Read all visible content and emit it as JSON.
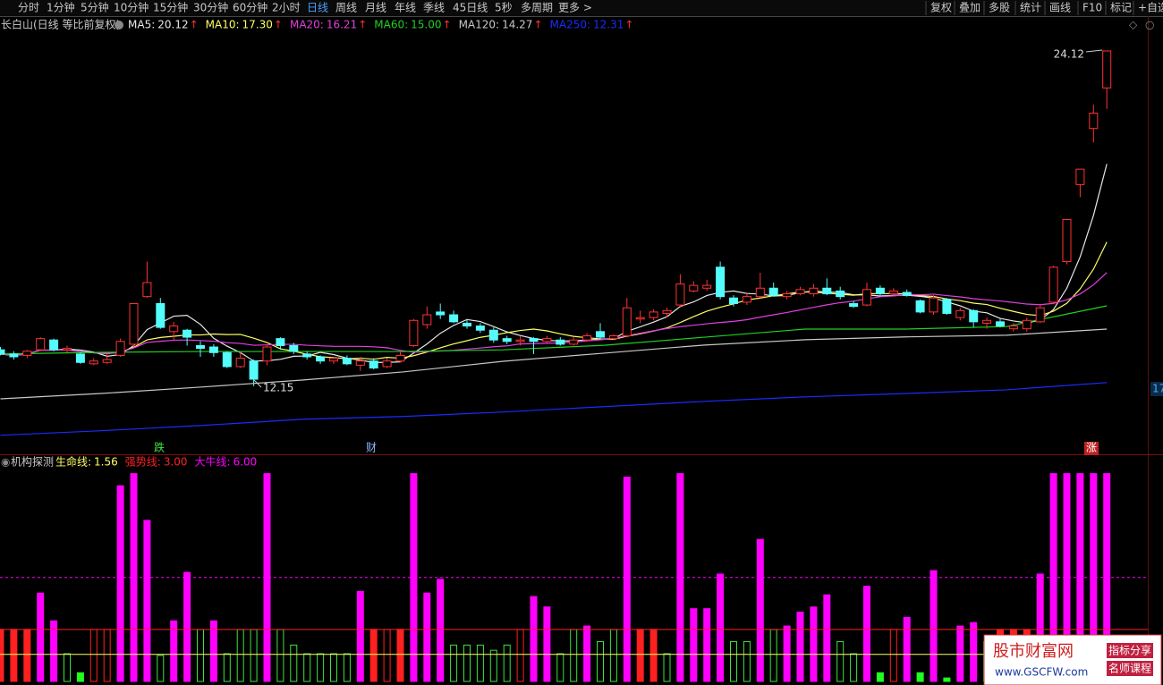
{
  "toolbar": {
    "left": [
      "分时",
      "1分钟",
      "5分钟",
      "10分钟",
      "15分钟",
      "30分钟",
      "60分钟",
      "2小时",
      "日线",
      "周线",
      "月线",
      "年线",
      "季线",
      "45日线",
      "5秒",
      "多周期",
      "更多 >"
    ],
    "active": "日线",
    "right": [
      "复权",
      "叠加",
      "多股",
      "统计",
      "画线",
      "F10",
      "标记",
      "+自选"
    ]
  },
  "main": {
    "title": "长白山(日线 等比前复权)",
    "ylim": [
      9.72,
      25.3
    ],
    "ma": [
      {
        "name": "MA5:",
        "value": 20.12,
        "trend": "↑",
        "color": "#e8e8e8"
      },
      {
        "name": "MA10:",
        "value": 17.3,
        "value_label": "17.30",
        "trend": "↑",
        "color": "#ffff64"
      },
      {
        "name": "MA20:",
        "value": 16.21,
        "trend": "↑",
        "color": "#e040e0"
      },
      {
        "name": "MA60:",
        "value": 15.0,
        "value_label": "15.00",
        "trend": "↑",
        "color": "#20d020",
        "values": [
          13.3,
          13.36,
          13.39,
          13.39,
          13.39,
          13.45,
          13.61,
          13.9,
          14.19,
          14.19,
          14.28,
          15.02
        ]
      },
      {
        "name": "MA120:",
        "value": 14.27,
        "trend": "↑",
        "color": "#c8c8c8",
        "values": [
          11.7,
          11.89,
          12.12,
          12.37,
          12.66,
          13.04,
          13.33,
          13.62,
          13.81,
          13.91,
          13.97,
          14.19
        ]
      },
      {
        "name": "MA250:",
        "value": 12.31,
        "trend": "↑",
        "color": "#1a2cff",
        "values": [
          10.4,
          10.56,
          10.75,
          10.97,
          11.07,
          11.23,
          11.42,
          11.61,
          11.77,
          11.89,
          12.02,
          12.28
        ]
      }
    ],
    "candles": [
      [
        13.45,
        13.55,
        13.25,
        13.3
      ],
      [
        13.3,
        13.4,
        13.1,
        13.2
      ],
      [
        13.25,
        13.45,
        13.15,
        13.4
      ],
      [
        13.45,
        13.9,
        13.4,
        13.85
      ],
      [
        13.8,
        13.85,
        13.4,
        13.45
      ],
      [
        13.45,
        13.6,
        13.35,
        13.5
      ],
      [
        13.3,
        13.35,
        12.95,
        13.0
      ],
      [
        12.95,
        13.15,
        12.9,
        13.05
      ],
      [
        13.0,
        13.3,
        12.95,
        13.1
      ],
      [
        13.25,
        13.85,
        13.2,
        13.75
      ],
      [
        13.65,
        15.1,
        13.55,
        15.1
      ],
      [
        15.35,
        16.6,
        15.3,
        15.85
      ],
      [
        15.1,
        15.3,
        14.2,
        14.25
      ],
      [
        14.1,
        14.45,
        13.8,
        14.3
      ],
      [
        14.15,
        14.2,
        13.6,
        13.9
      ],
      [
        13.6,
        13.75,
        13.2,
        13.5
      ],
      [
        13.55,
        13.65,
        13.2,
        13.35
      ],
      [
        13.35,
        13.4,
        12.8,
        12.85
      ],
      [
        12.85,
        13.4,
        12.8,
        13.15
      ],
      [
        13.05,
        13.1,
        12.15,
        12.4
      ],
      [
        13.05,
        13.65,
        12.9,
        13.55
      ],
      [
        13.85,
        13.9,
        13.45,
        13.6
      ],
      [
        13.6,
        13.7,
        13.3,
        13.4
      ],
      [
        13.3,
        13.4,
        13.1,
        13.2
      ],
      [
        13.2,
        13.25,
        12.95,
        13.05
      ],
      [
        13.05,
        13.2,
        12.95,
        13.15
      ],
      [
        13.15,
        13.25,
        12.9,
        12.95
      ],
      [
        12.9,
        13.2,
        12.7,
        13.05
      ],
      [
        13.05,
        13.15,
        12.75,
        12.8
      ],
      [
        12.85,
        13.15,
        12.8,
        13.05
      ],
      [
        13.05,
        13.4,
        13.0,
        13.25
      ],
      [
        13.6,
        14.55,
        13.55,
        14.5
      ],
      [
        14.35,
        15.0,
        14.2,
        14.7
      ],
      [
        14.8,
        15.1,
        14.55,
        14.7
      ],
      [
        14.7,
        14.85,
        14.4,
        14.45
      ],
      [
        14.4,
        14.55,
        14.2,
        14.3
      ],
      [
        14.3,
        14.4,
        14.05,
        14.15
      ],
      [
        14.15,
        14.25,
        13.7,
        13.8
      ],
      [
        13.85,
        13.95,
        13.65,
        13.75
      ],
      [
        13.75,
        13.95,
        13.6,
        13.8
      ],
      [
        13.85,
        13.9,
        13.3,
        13.75
      ],
      [
        13.75,
        13.95,
        13.7,
        13.85
      ],
      [
        13.8,
        13.9,
        13.6,
        13.65
      ],
      [
        13.65,
        13.9,
        13.6,
        13.8
      ],
      [
        13.8,
        14.05,
        13.75,
        13.95
      ],
      [
        14.1,
        14.4,
        13.85,
        13.9
      ],
      [
        13.85,
        14.0,
        13.8,
        13.95
      ],
      [
        13.95,
        15.3,
        13.9,
        14.95
      ],
      [
        14.55,
        14.85,
        14.4,
        14.6
      ],
      [
        14.6,
        14.9,
        14.5,
        14.8
      ],
      [
        14.75,
        14.95,
        14.6,
        14.85
      ],
      [
        15.05,
        16.15,
        14.95,
        15.8
      ],
      [
        15.55,
        15.9,
        15.5,
        15.75
      ],
      [
        15.65,
        15.95,
        15.55,
        15.75
      ],
      [
        16.4,
        16.6,
        15.25,
        15.35
      ],
      [
        15.3,
        15.4,
        15.0,
        15.1
      ],
      [
        15.15,
        15.5,
        15.05,
        15.35
      ],
      [
        15.35,
        16.2,
        15.3,
        15.65
      ],
      [
        15.65,
        15.85,
        15.35,
        15.4
      ],
      [
        15.35,
        15.55,
        15.25,
        15.45
      ],
      [
        15.45,
        15.7,
        15.4,
        15.6
      ],
      [
        15.45,
        15.8,
        15.35,
        15.65
      ],
      [
        15.65,
        16.0,
        15.4,
        15.45
      ],
      [
        15.55,
        15.7,
        15.25,
        15.35
      ],
      [
        15.1,
        15.2,
        14.95,
        15.0
      ],
      [
        15.05,
        15.85,
        15.0,
        15.6
      ],
      [
        15.65,
        15.75,
        15.4,
        15.45
      ],
      [
        15.45,
        15.65,
        15.4,
        15.55
      ],
      [
        15.5,
        15.6,
        15.35,
        15.4
      ],
      [
        15.2,
        15.25,
        14.75,
        14.8
      ],
      [
        14.8,
        15.4,
        14.7,
        15.3
      ],
      [
        15.25,
        15.3,
        14.7,
        14.75
      ],
      [
        14.6,
        14.95,
        14.5,
        14.85
      ],
      [
        14.85,
        14.9,
        14.25,
        14.45
      ],
      [
        14.4,
        14.6,
        14.2,
        14.5
      ],
      [
        14.45,
        14.55,
        14.25,
        14.3
      ],
      [
        14.2,
        14.4,
        14.1,
        14.3
      ],
      [
        14.2,
        14.6,
        14.1,
        14.5
      ],
      [
        14.45,
        15.05,
        14.4,
        14.95
      ],
      [
        15.15,
        16.45,
        15.1,
        16.4
      ],
      [
        16.6,
        18.1,
        16.5,
        18.1
      ],
      [
        19.35,
        19.9,
        18.9,
        19.9
      ],
      [
        21.35,
        22.2,
        20.85,
        21.9
      ],
      [
        22.8,
        24.12,
        22.05,
        24.12
      ]
    ],
    "high_label": 24.12,
    "low_label": 12.15,
    "right_axis_label": "17",
    "events": [
      {
        "text": "跌",
        "color": "#40e040"
      },
      {
        "text": "财",
        "color": "#8fb8ff"
      },
      {
        "text": "涨",
        "color": "#ffffff"
      }
    ]
  },
  "indicator": {
    "title": "机构探测",
    "ylim": [
      0,
      12.6
    ],
    "lines": [
      {
        "name": "生命线:",
        "value": 1.56,
        "color": "#ffff64"
      },
      {
        "name": "强势线:",
        "value": 3,
        "value_label": "3.00",
        "color": "#ff2020"
      },
      {
        "name": "大牛线:",
        "value": 6,
        "value_label": "6.00",
        "color": "#ff00ff"
      }
    ],
    "values": [
      3,
      3,
      3,
      5.1,
      3.5,
      1.6,
      0.5,
      3,
      3,
      11.3,
      12,
      9.3,
      1.5,
      3.5,
      6.3,
      3,
      3.5,
      1.6,
      3,
      3,
      12,
      3,
      2.1,
      1.6,
      1.6,
      1.6,
      1.6,
      5.2,
      3,
      3,
      3,
      12,
      5.1,
      5.9,
      2.1,
      2.1,
      2.1,
      1.8,
      2.1,
      3,
      4.9,
      4.3,
      1.6,
      3,
      3.2,
      2.3,
      3,
      11.8,
      3,
      3,
      1.6,
      12,
      4.2,
      4.2,
      6.2,
      2.3,
      2.3,
      8.2,
      3,
      3.2,
      4,
      4.3,
      5,
      2.3,
      1.6,
      5.5,
      0.5,
      3,
      3.7,
      0.5,
      6.4,
      0.2,
      3.2,
      3.4,
      2.3,
      3,
      3,
      3,
      6.2,
      12,
      12,
      12,
      12,
      12
    ],
    "bar_colors": [
      "#ff2020",
      "#ff2020",
      "#ff2020",
      "#ff00ff",
      "#ff00ff",
      "#40e040",
      "#20ff20",
      "#ff2020",
      "#ff2020",
      "#ff00ff",
      "#ff00ff",
      "#ff00ff",
      "#40e040",
      "#ff00ff",
      "#ff00ff",
      "#40e040",
      "#ff00ff",
      "#40e040",
      "#40e040",
      "#40e040",
      "#ff00ff",
      "#40e040",
      "#40e040",
      "#40e040",
      "#40e040",
      "#40e040",
      "#40e040",
      "#ff00ff",
      "#ff2020",
      "#ff2020",
      "#ff2020",
      "#ff00ff",
      "#ff00ff",
      "#ff00ff",
      "#40e040",
      "#40e040",
      "#40e040",
      "#40e040",
      "#40e040",
      "#ff2020",
      "#ff00ff",
      "#ff00ff",
      "#40e040",
      "#40e040",
      "#ff00ff",
      "#40e040",
      "#40e040",
      "#ff00ff",
      "#ff2020",
      "#ff2020",
      "#40e040",
      "#ff00ff",
      "#ff00ff",
      "#ff00ff",
      "#ff00ff",
      "#40e040",
      "#40e040",
      "#ff00ff",
      "#40e040",
      "#ff00ff",
      "#ff00ff",
      "#ff00ff",
      "#ff00ff",
      "#40e040",
      "#40e040",
      "#ff00ff",
      "#20ff20",
      "#ff2020",
      "#ff00ff",
      "#20ff20",
      "#ff00ff",
      "#20ff20",
      "#ff00ff",
      "#ff00ff",
      "#40e040",
      "#ff2020",
      "#ff2020",
      "#ff2020",
      "#ff00ff",
      "#ff00ff",
      "#ff00ff",
      "#ff00ff",
      "#ff00ff",
      "#ff00ff"
    ],
    "bar_filled": [
      true,
      true,
      true,
      true,
      true,
      false,
      true,
      false,
      false,
      true,
      true,
      true,
      false,
      true,
      true,
      false,
      true,
      false,
      false,
      false,
      true,
      false,
      false,
      false,
      false,
      false,
      false,
      true,
      true,
      false,
      true,
      true,
      true,
      true,
      false,
      false,
      false,
      false,
      false,
      false,
      true,
      true,
      false,
      false,
      true,
      false,
      false,
      true,
      true,
      true,
      false,
      true,
      true,
      true,
      true,
      false,
      false,
      true,
      false,
      true,
      true,
      true,
      true,
      false,
      false,
      true,
      true,
      false,
      true,
      true,
      true,
      true,
      true,
      true,
      false,
      true,
      true,
      true,
      true,
      true,
      true,
      true,
      true,
      true
    ]
  },
  "watermark": {
    "name": "股市财富网",
    "url": "www.GSCFW.com",
    "tags": [
      "指标分享",
      "名师课程"
    ]
  }
}
